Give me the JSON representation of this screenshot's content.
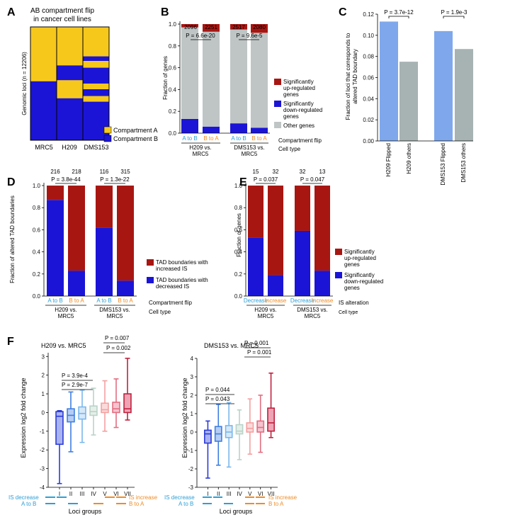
{
  "colors": {
    "yellow": "#f7c81c",
    "blue": "#1b14d6",
    "red": "#a81612",
    "gray": "#bfc5c5",
    "lightblue": "#7fa8ec",
    "lightgray": "#a7b2b2",
    "cyan": "#2d9fd8",
    "orange": "#ef8c27"
  },
  "panels": {
    "A": {
      "letter": "A",
      "title": [
        "AB compartment flip",
        "in cancer cell lines"
      ],
      "ylabel": "Genomic loci (n = 12206)",
      "cell_lines": [
        "MRC5",
        "H209",
        "DMS153"
      ],
      "legend": [
        "Compartment A",
        "Compartment B"
      ],
      "columns": [
        [
          {
            "c": "A",
            "f": 0.48
          },
          {
            "c": "B",
            "f": 0.52
          }
        ],
        [
          {
            "c": "A",
            "f": 0.34
          },
          {
            "c": "B",
            "f": 0.13
          },
          {
            "c": "A",
            "f": 0.16
          },
          {
            "c": "B",
            "f": 0.37
          }
        ],
        [
          {
            "c": "A",
            "f": 0.26
          },
          {
            "c": "B",
            "f": 0.04
          },
          {
            "c": "A",
            "f": 0.06
          },
          {
            "c": "B",
            "f": 0.14
          },
          {
            "c": "A",
            "f": 0.05
          },
          {
            "c": "B",
            "f": 0.06
          },
          {
            "c": "A",
            "f": 0.05
          },
          {
            "c": "B",
            "f": 0.34
          }
        ]
      ]
    },
    "B": {
      "letter": "B",
      "ylabel": "Fraction of genes",
      "yticks": [
        "0.0",
        "0.2",
        "0.4",
        "0.6",
        "0.8",
        "1.0"
      ],
      "counts": [
        "2096",
        "2251",
        "2517",
        "2080"
      ],
      "pvalues": [
        "P = 6.6e-20",
        "P = 9.6e-5"
      ],
      "xlabels": [
        "A to B",
        "B to A",
        "A to B",
        "B to A"
      ],
      "groups": [
        [
          "H209 vs.",
          "MRC5"
        ],
        [
          "DMS153 vs.",
          "MRC5"
        ]
      ],
      "row1_label": "Compartment flip",
      "row2_label": "Cell type",
      "legend": [
        [
          "Significantly",
          "up-regulated",
          "genes"
        ],
        [
          "Significantly",
          "down-regulated",
          "genes"
        ],
        [
          "Other genes"
        ]
      ]
    },
    "C": {
      "letter": "C",
      "ylabel": [
        "Fraction of loci that corresponds to",
        "altered TAD boundary"
      ],
      "yticks": [
        "0.00",
        "0.02",
        "0.04",
        "0.06",
        "0.08",
        "0.10",
        "0.12"
      ],
      "pvalues": [
        "P = 3.7e-12",
        "P = 1.9e-3"
      ],
      "xlabels": [
        "H209 Flipped",
        "H209 others",
        "DMS153 Flipped",
        "DMS153 others"
      ]
    },
    "D": {
      "letter": "D",
      "ylabel": "Fraction of altered TAD boundaries",
      "yticks": [
        "0.0",
        "0.2",
        "0.4",
        "0.6",
        "0.8",
        "1.0"
      ],
      "counts": [
        "216",
        "218",
        "116",
        "315"
      ],
      "pvalues": [
        "P = 3.8e-44",
        "P = 1.3e-22"
      ],
      "xlabels": [
        "A to B",
        "B to A",
        "A to B",
        "B to A"
      ],
      "groups": [
        [
          "H209 vs.",
          "MRC5"
        ],
        [
          "DMS153 vs.",
          "MRC5"
        ]
      ],
      "row1_label": "Compartment flip",
      "row2_label": "Cell type",
      "legend": [
        [
          "TAD boundaries with",
          "increased IS"
        ],
        [
          "TAD boundaries with",
          "decreased IS"
        ]
      ]
    },
    "E": {
      "letter": "E",
      "ylabel": "Fraction of genes",
      "yticks": [
        "0.0",
        "0.2",
        "0.4",
        "0.6",
        "0.8",
        "1.0"
      ],
      "counts": [
        "15",
        "32",
        "32",
        "13"
      ],
      "pvalues": [
        "P = 0.037",
        "P = 0.047"
      ],
      "xlabels": [
        "Decrease",
        "Increase",
        "Decrease",
        "Increase"
      ],
      "groups": [
        [
          "H209 vs.",
          "MRC5"
        ],
        [
          "DMS153 vs.",
          "MRC5"
        ]
      ],
      "row1_label": "IS alteration",
      "row2_label": "Cell type",
      "legend": [
        [
          "Significantly",
          "up-regulated",
          "genes"
        ],
        [
          "Significantly",
          "down-regulated",
          "genes"
        ]
      ]
    },
    "F": {
      "letter": "F",
      "xlabel": "Loci groups",
      "roman": [
        "I",
        "II",
        "III",
        "IV",
        "V",
        "VI",
        "VII"
      ],
      "legend_left": [
        "IS decrease",
        "A to B"
      ],
      "legend_right": [
        "IS increase",
        "B to A"
      ],
      "left": {
        "title": "H209 vs. MRC5",
        "ylabel": "Expression log2 fold change",
        "yticks": [
          "3",
          "2",
          "1",
          "0",
          "-1",
          "-2",
          "-3",
          "-4"
        ],
        "pvalues": [
          "P = 3.9e-4",
          "P = 2.9e-7",
          "P = 0.007",
          "P = 0.002"
        ]
      },
      "right": {
        "title": "DMS153 vs. MRC5",
        "ylabel": "Expression log2 fold change",
        "yticks": [
          "4",
          "3",
          "2",
          "1",
          "0",
          "-1",
          "-2",
          "-3"
        ],
        "pvalues": [
          "P = 0.044",
          "P = 0.043",
          "P = 0.001",
          "P = 0.001"
        ]
      }
    }
  },
  "chart_data": [
    {
      "panel": "B",
      "type": "bar",
      "categories": [
        "H209 vs. MRC5 A to B",
        "H209 vs. MRC5 B to A",
        "DMS153 vs. MRC5 A to B",
        "DMS153 vs. MRC5 B to A"
      ],
      "ylim": [
        0,
        1
      ],
      "series": [
        {
          "name": "Significantly down-regulated genes",
          "values": [
            0.13,
            0.06,
            0.09,
            0.05
          ]
        },
        {
          "name": "Other genes",
          "values": [
            0.84,
            0.87,
            0.86,
            0.87
          ]
        },
        {
          "name": "Significantly up-regulated genes",
          "values": [
            0.03,
            0.07,
            0.05,
            0.08
          ]
        }
      ]
    },
    {
      "panel": "C",
      "type": "bar",
      "categories": [
        "H209 Flipped",
        "H209 others",
        "DMS153 Flipped",
        "DMS153 others"
      ],
      "values": [
        0.113,
        0.075,
        0.104,
        0.087
      ],
      "ylim": [
        0,
        0.12
      ]
    },
    {
      "panel": "D",
      "type": "bar",
      "categories": [
        "H209 vs. MRC5 A to B",
        "H209 vs. MRC5 B to A",
        "DMS153 vs. MRC5 A to B",
        "DMS153 vs. MRC5 B to A"
      ],
      "ylim": [
        0,
        1
      ],
      "series": [
        {
          "name": "TAD boundaries with decreased IS",
          "values": [
            0.87,
            0.23,
            0.62,
            0.14
          ]
        },
        {
          "name": "TAD boundaries with increased IS",
          "values": [
            0.13,
            0.77,
            0.38,
            0.86
          ]
        }
      ]
    },
    {
      "panel": "E",
      "type": "bar",
      "categories": [
        "H209 vs. MRC5 Decrease",
        "H209 vs. MRC5 Increase",
        "DMS153 vs. MRC5 Decrease",
        "DMS153 vs. MRC5 Increase"
      ],
      "ylim": [
        0,
        1
      ],
      "series": [
        {
          "name": "Significantly down-regulated genes",
          "values": [
            0.53,
            0.19,
            0.59,
            0.23
          ]
        },
        {
          "name": "Significantly up-regulated genes",
          "values": [
            0.47,
            0.81,
            0.41,
            0.77
          ]
        }
      ]
    },
    {
      "panel": "F-left",
      "type": "box",
      "categories": [
        "I",
        "II",
        "III",
        "IV",
        "V",
        "VI",
        "VII"
      ],
      "ylim": [
        -4,
        3.2
      ],
      "boxes": [
        {
          "wlo": -3.8,
          "q1": -1.7,
          "med": -0.2,
          "q3": 0.05,
          "whi": 0.1
        },
        {
          "wlo": -2.1,
          "q1": -0.5,
          "med": -0.15,
          "q3": 0.2,
          "whi": 1.1
        },
        {
          "wlo": -1.6,
          "q1": -0.35,
          "med": -0.05,
          "q3": 0.3,
          "whi": 1.2
        },
        {
          "wlo": -1.2,
          "q1": -0.15,
          "med": 0.05,
          "q3": 0.35,
          "whi": 1.3
        },
        {
          "wlo": -1.0,
          "q1": 0.0,
          "med": 0.15,
          "q3": 0.5,
          "whi": 1.7
        },
        {
          "wlo": -0.8,
          "q1": 0.0,
          "med": 0.2,
          "q3": 0.55,
          "whi": 1.8
        },
        {
          "wlo": -0.4,
          "q1": 0.0,
          "med": 0.2,
          "q3": 1.0,
          "whi": 2.9
        }
      ]
    },
    {
      "panel": "F-right",
      "type": "box",
      "categories": [
        "I",
        "II",
        "III",
        "IV",
        "V",
        "VI",
        "VII"
      ],
      "ylim": [
        -3,
        4
      ],
      "boxes": [
        {
          "wlo": -2.5,
          "q1": -0.6,
          "med": -0.1,
          "q3": 0.1,
          "whi": 0.6
        },
        {
          "wlo": -1.8,
          "q1": -0.5,
          "med": -0.1,
          "q3": 0.3,
          "whi": 1.5
        },
        {
          "wlo": -1.9,
          "q1": -0.3,
          "med": 0.0,
          "q3": 0.35,
          "whi": 1.6
        },
        {
          "wlo": -1.5,
          "q1": -0.1,
          "med": 0.05,
          "q3": 0.4,
          "whi": 1.2
        },
        {
          "wlo": -1.2,
          "q1": 0.0,
          "med": 0.2,
          "q3": 0.5,
          "whi": 1.8
        },
        {
          "wlo": -1.1,
          "q1": 0.0,
          "med": 0.25,
          "q3": 0.6,
          "whi": 2.0
        },
        {
          "wlo": -0.3,
          "q1": 0.05,
          "med": 0.5,
          "q3": 1.3,
          "whi": 3.2
        }
      ]
    }
  ]
}
